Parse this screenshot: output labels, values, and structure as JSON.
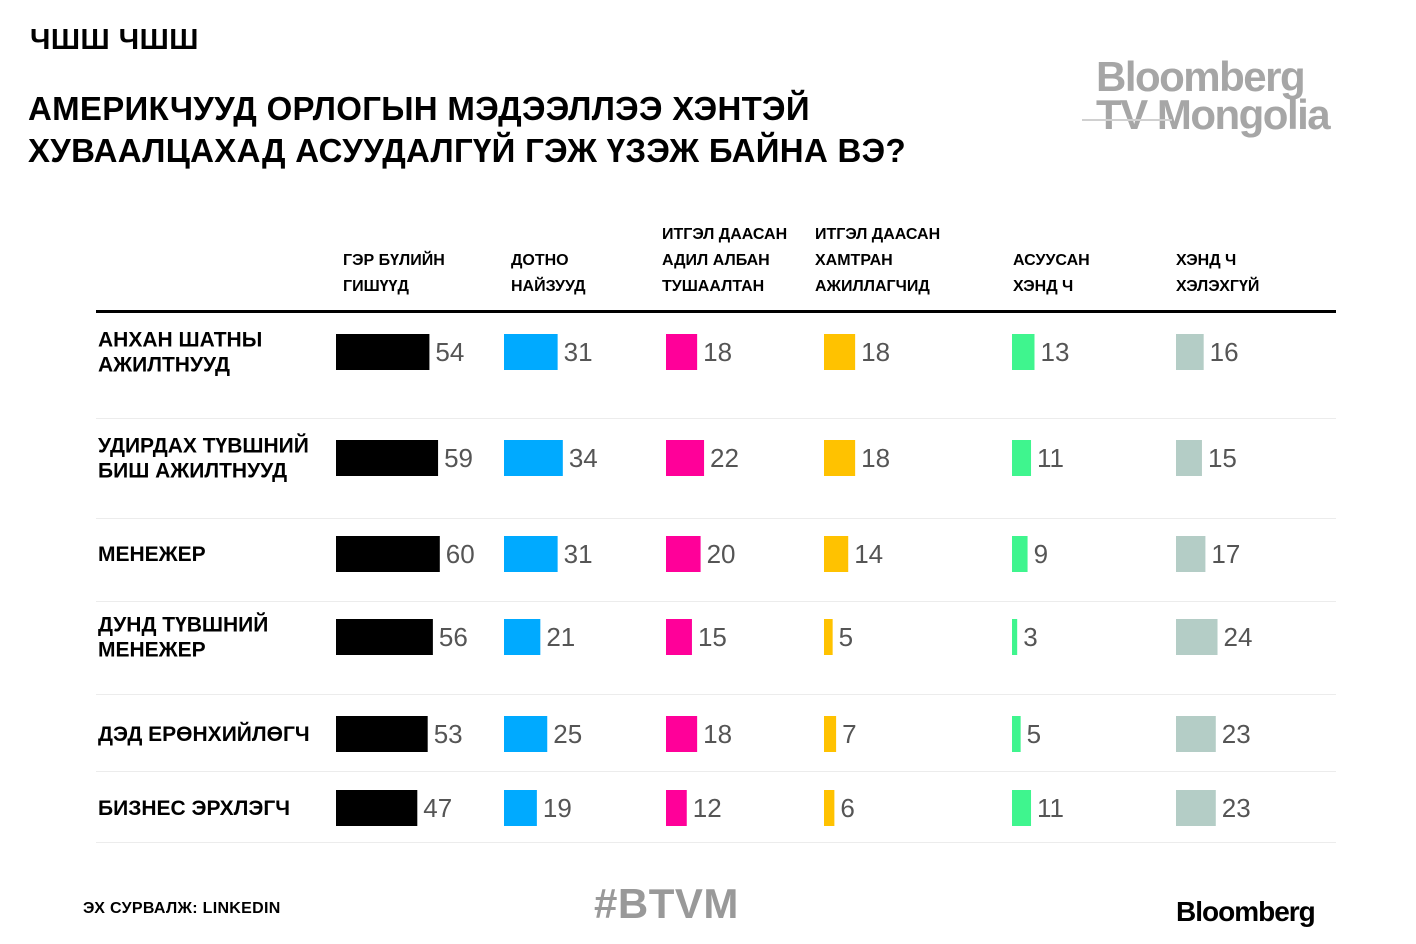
{
  "header": {
    "kicker": "ЧШШ ЧШШ",
    "title": "АМЕРИКЧУУД ОРЛОГЫН МЭДЭЭЛЛЭЭ ХЭНТЭЙ ХУВААЛЦАХАД АСУУДАЛГҮЙ ГЭЖ ҮЗЭЖ БАЙНА ВЭ?"
  },
  "logo": {
    "line1": "Bloomberg",
    "line2": "TV Mongolia"
  },
  "footer": {
    "source": "ЭХ СУРВАЛЖ: LINKEDIN",
    "hashtag": "#BTVM",
    "brand": "Bloomberg"
  },
  "chart_data": {
    "type": "bar",
    "columns": [
      {
        "label": [
          "ГЭР БҮЛИЙН",
          "ГИШҮҮД"
        ],
        "color": "#000000"
      },
      {
        "label": [
          "ДОТНО",
          "НАЙЗУУД"
        ],
        "color": "#00aaff"
      },
      {
        "label": [
          "ИТГЭЛ ДААСАН",
          "АДИЛ АЛБАН",
          "ТУШААЛТАН"
        ],
        "color": "#ff0099"
      },
      {
        "label": [
          "ИТГЭЛ ДААСАН",
          "ХАМТРАН",
          "АЖИЛЛАГЧИД"
        ],
        "color": "#ffc200"
      },
      {
        "label": [
          "АСУУСАН",
          "ХЭНД Ч"
        ],
        "color": "#3ff58e"
      },
      {
        "label": [
          "ХЭНД Ч",
          "ХЭЛЭХГҮЙ"
        ],
        "color": "#b4cdc6"
      }
    ],
    "rows": [
      {
        "label": [
          "АНХАН ШАТНЫ",
          "АЖИЛТНУУД"
        ],
        "values": [
          54,
          31,
          18,
          18,
          13,
          16
        ]
      },
      {
        "label": [
          "УДИРДАХ ТҮВШНИЙ",
          "БИШ АЖИЛТНУУД"
        ],
        "values": [
          59,
          34,
          22,
          18,
          11,
          15
        ]
      },
      {
        "label": [
          "МЕНЕЖЕР"
        ],
        "values": [
          60,
          31,
          20,
          14,
          9,
          17
        ]
      },
      {
        "label": [
          "ДУНД ТҮВШНИЙ",
          "МЕНЕЖЕР"
        ],
        "values": [
          56,
          21,
          15,
          5,
          3,
          24
        ]
      },
      {
        "label": [
          "ДЭД ЕРӨНХИЙЛӨГЧ"
        ],
        "values": [
          53,
          25,
          18,
          7,
          5,
          23
        ]
      },
      {
        "label": [
          "БИЗНЕС ЭРХЛЭГЧ"
        ],
        "values": [
          47,
          19,
          12,
          6,
          11,
          23
        ]
      }
    ],
    "value_color": "#555555"
  }
}
